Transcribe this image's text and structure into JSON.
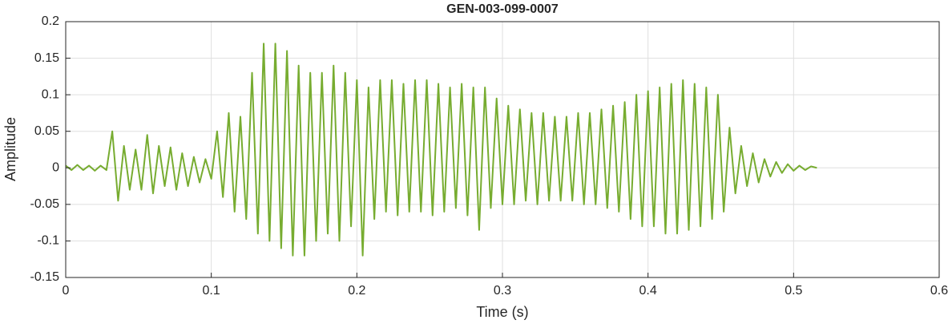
{
  "chart_data": {
    "type": "line",
    "title": "GEN-003-099-0007",
    "x_label": "Time (s)",
    "y_label": "Amplitude",
    "xlim": [
      0,
      0.6
    ],
    "ylim": [
      -0.15,
      0.2
    ],
    "xticks": [
      0,
      0.1,
      0.2,
      0.3,
      0.4,
      0.5,
      0.6
    ],
    "yticks": [
      -0.15,
      -0.1,
      -0.05,
      0,
      0.05,
      0.1,
      0.15,
      0.2
    ],
    "grid": true,
    "series": [
      {
        "color": "#77ac30",
        "x": [
          0,
          0.004,
          0.008,
          0.012,
          0.016,
          0.02,
          0.024,
          0.028,
          0.032,
          0.036,
          0.04,
          0.044,
          0.048,
          0.052,
          0.056,
          0.06,
          0.064,
          0.068,
          0.072,
          0.076,
          0.08,
          0.084,
          0.088,
          0.092,
          0.096,
          0.1,
          0.104,
          0.108,
          0.112,
          0.116,
          0.12,
          0.124,
          0.128,
          0.132,
          0.136,
          0.14,
          0.144,
          0.148,
          0.152,
          0.156,
          0.16,
          0.164,
          0.168,
          0.172,
          0.176,
          0.18,
          0.184,
          0.188,
          0.192,
          0.196,
          0.2,
          0.204,
          0.208,
          0.212,
          0.216,
          0.22,
          0.224,
          0.228,
          0.232,
          0.236,
          0.24,
          0.244,
          0.248,
          0.252,
          0.256,
          0.26,
          0.264,
          0.268,
          0.272,
          0.276,
          0.28,
          0.284,
          0.288,
          0.292,
          0.296,
          0.3,
          0.304,
          0.308,
          0.312,
          0.316,
          0.32,
          0.324,
          0.328,
          0.332,
          0.336,
          0.34,
          0.344,
          0.348,
          0.352,
          0.356,
          0.36,
          0.364,
          0.368,
          0.372,
          0.376,
          0.38,
          0.384,
          0.388,
          0.392,
          0.396,
          0.4,
          0.404,
          0.408,
          0.412,
          0.416,
          0.42,
          0.424,
          0.428,
          0.432,
          0.436,
          0.44,
          0.444,
          0.448,
          0.452,
          0.456,
          0.46,
          0.464,
          0.468,
          0.472,
          0.476,
          0.48,
          0.484,
          0.488,
          0.492,
          0.496,
          0.5,
          0.504,
          0.508,
          0.512,
          0.516
        ],
        "values": [
          0.003,
          -0.003,
          0.004,
          -0.003,
          0.003,
          -0.004,
          0.003,
          -0.003,
          0.05,
          -0.045,
          0.03,
          -0.03,
          0.025,
          -0.03,
          0.045,
          -0.035,
          0.03,
          -0.025,
          0.028,
          -0.03,
          0.02,
          -0.025,
          0.015,
          -0.02,
          0.012,
          -0.015,
          0.05,
          -0.04,
          0.075,
          -0.06,
          0.07,
          -0.07,
          0.13,
          -0.09,
          0.17,
          -0.1,
          0.17,
          -0.11,
          0.16,
          -0.12,
          0.14,
          -0.12,
          0.13,
          -0.1,
          0.13,
          -0.09,
          0.14,
          -0.1,
          0.13,
          -0.08,
          0.12,
          -0.12,
          0.11,
          -0.07,
          0.12,
          -0.06,
          0.12,
          -0.065,
          0.115,
          -0.06,
          0.12,
          -0.06,
          0.12,
          -0.065,
          0.115,
          -0.06,
          0.11,
          -0.055,
          0.115,
          -0.065,
          0.11,
          -0.085,
          0.11,
          -0.055,
          0.095,
          -0.05,
          0.085,
          -0.05,
          0.08,
          -0.045,
          0.075,
          -0.05,
          0.075,
          -0.045,
          0.07,
          -0.045,
          0.07,
          -0.045,
          0.075,
          -0.05,
          0.075,
          -0.05,
          0.08,
          -0.055,
          0.085,
          -0.06,
          0.09,
          -0.07,
          0.1,
          -0.08,
          0.105,
          -0.08,
          0.11,
          -0.09,
          0.115,
          -0.09,
          0.12,
          -0.085,
          0.115,
          -0.08,
          0.11,
          -0.07,
          0.1,
          -0.06,
          0.055,
          -0.035,
          0.03,
          -0.025,
          0.02,
          -0.02,
          0.012,
          -0.012,
          0.008,
          -0.007,
          0.005,
          -0.004,
          0.003,
          -0.003,
          0.002,
          0
        ]
      }
    ]
  }
}
